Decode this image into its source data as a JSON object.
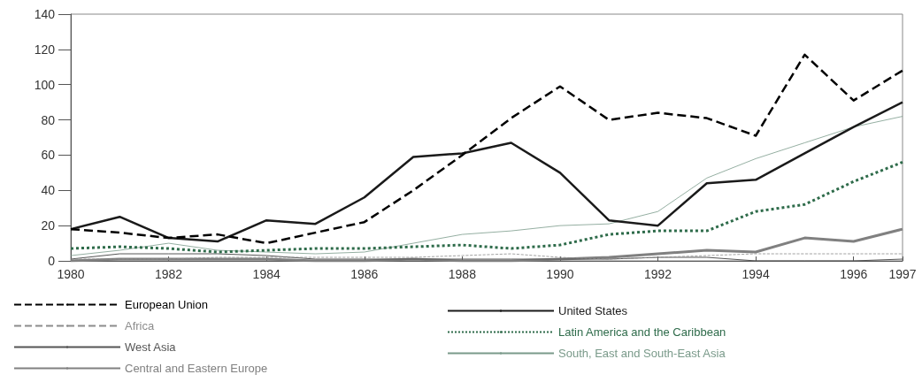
{
  "chart_data": {
    "type": "line",
    "x": [
      1980,
      1981,
      1982,
      1983,
      1984,
      1985,
      1986,
      1987,
      1988,
      1989,
      1990,
      1991,
      1992,
      1993,
      1994,
      1995,
      1996,
      1997
    ],
    "xlim": [
      1980,
      1997
    ],
    "xticks": [
      1980,
      1982,
      1984,
      1986,
      1988,
      1990,
      1992,
      1994,
      1996,
      1997
    ],
    "ylim": [
      0,
      140
    ],
    "yticks": [
      0,
      20,
      40,
      60,
      80,
      100,
      120,
      140
    ],
    "grid": false,
    "legend": "bottom",
    "marker": "none",
    "series": [
      {
        "name": "European Union",
        "color": "#000000",
        "line_style": "dashed",
        "values": [
          18,
          16,
          13,
          15,
          10,
          16,
          22,
          40,
          60,
          81,
          99,
          80,
          84,
          81,
          71,
          117,
          91,
          108
        ]
      },
      {
        "name": "United States",
        "color": "#1a1a1a",
        "line_style": "solid",
        "values": [
          18,
          25,
          13,
          11,
          23,
          21,
          36,
          59,
          61,
          67,
          50,
          23,
          20,
          44,
          46,
          61,
          76,
          90
        ]
      },
      {
        "name": "Africa",
        "color": "#8c8c8c",
        "line_style": "dashed",
        "values": [
          1,
          1,
          1,
          2,
          2,
          2,
          2,
          2,
          3,
          4,
          2,
          1,
          2,
          3,
          4,
          4,
          4,
          4
        ]
      },
      {
        "name": "Latin America and the Caribbean",
        "color": "#2e6b4a",
        "line_style": "dotted",
        "values": [
          7,
          8,
          7,
          5,
          6,
          7,
          7,
          8,
          9,
          7,
          9,
          15,
          17,
          17,
          28,
          32,
          45,
          56
        ]
      },
      {
        "name": "West Asia",
        "color": "#555555",
        "line_style": "solid",
        "values": [
          1,
          4,
          4,
          4,
          3,
          1,
          1,
          1,
          1,
          1,
          1,
          1,
          2,
          2,
          0,
          0,
          0,
          1
        ]
      },
      {
        "name": "South, East and South-East Asia",
        "color": "#7a9a8a",
        "line_style": "solid",
        "values": [
          3,
          6,
          10,
          6,
          5,
          4,
          5,
          10,
          15,
          17,
          20,
          21,
          28,
          47,
          58,
          67,
          76,
          82
        ]
      },
      {
        "name": "Central and Eastern Europe",
        "color": "#808080",
        "line_style": "solid",
        "values": [
          0,
          1,
          1,
          1,
          1,
          0,
          0,
          1,
          0,
          0,
          1,
          2,
          4,
          6,
          5,
          13,
          11,
          18
        ]
      }
    ]
  }
}
